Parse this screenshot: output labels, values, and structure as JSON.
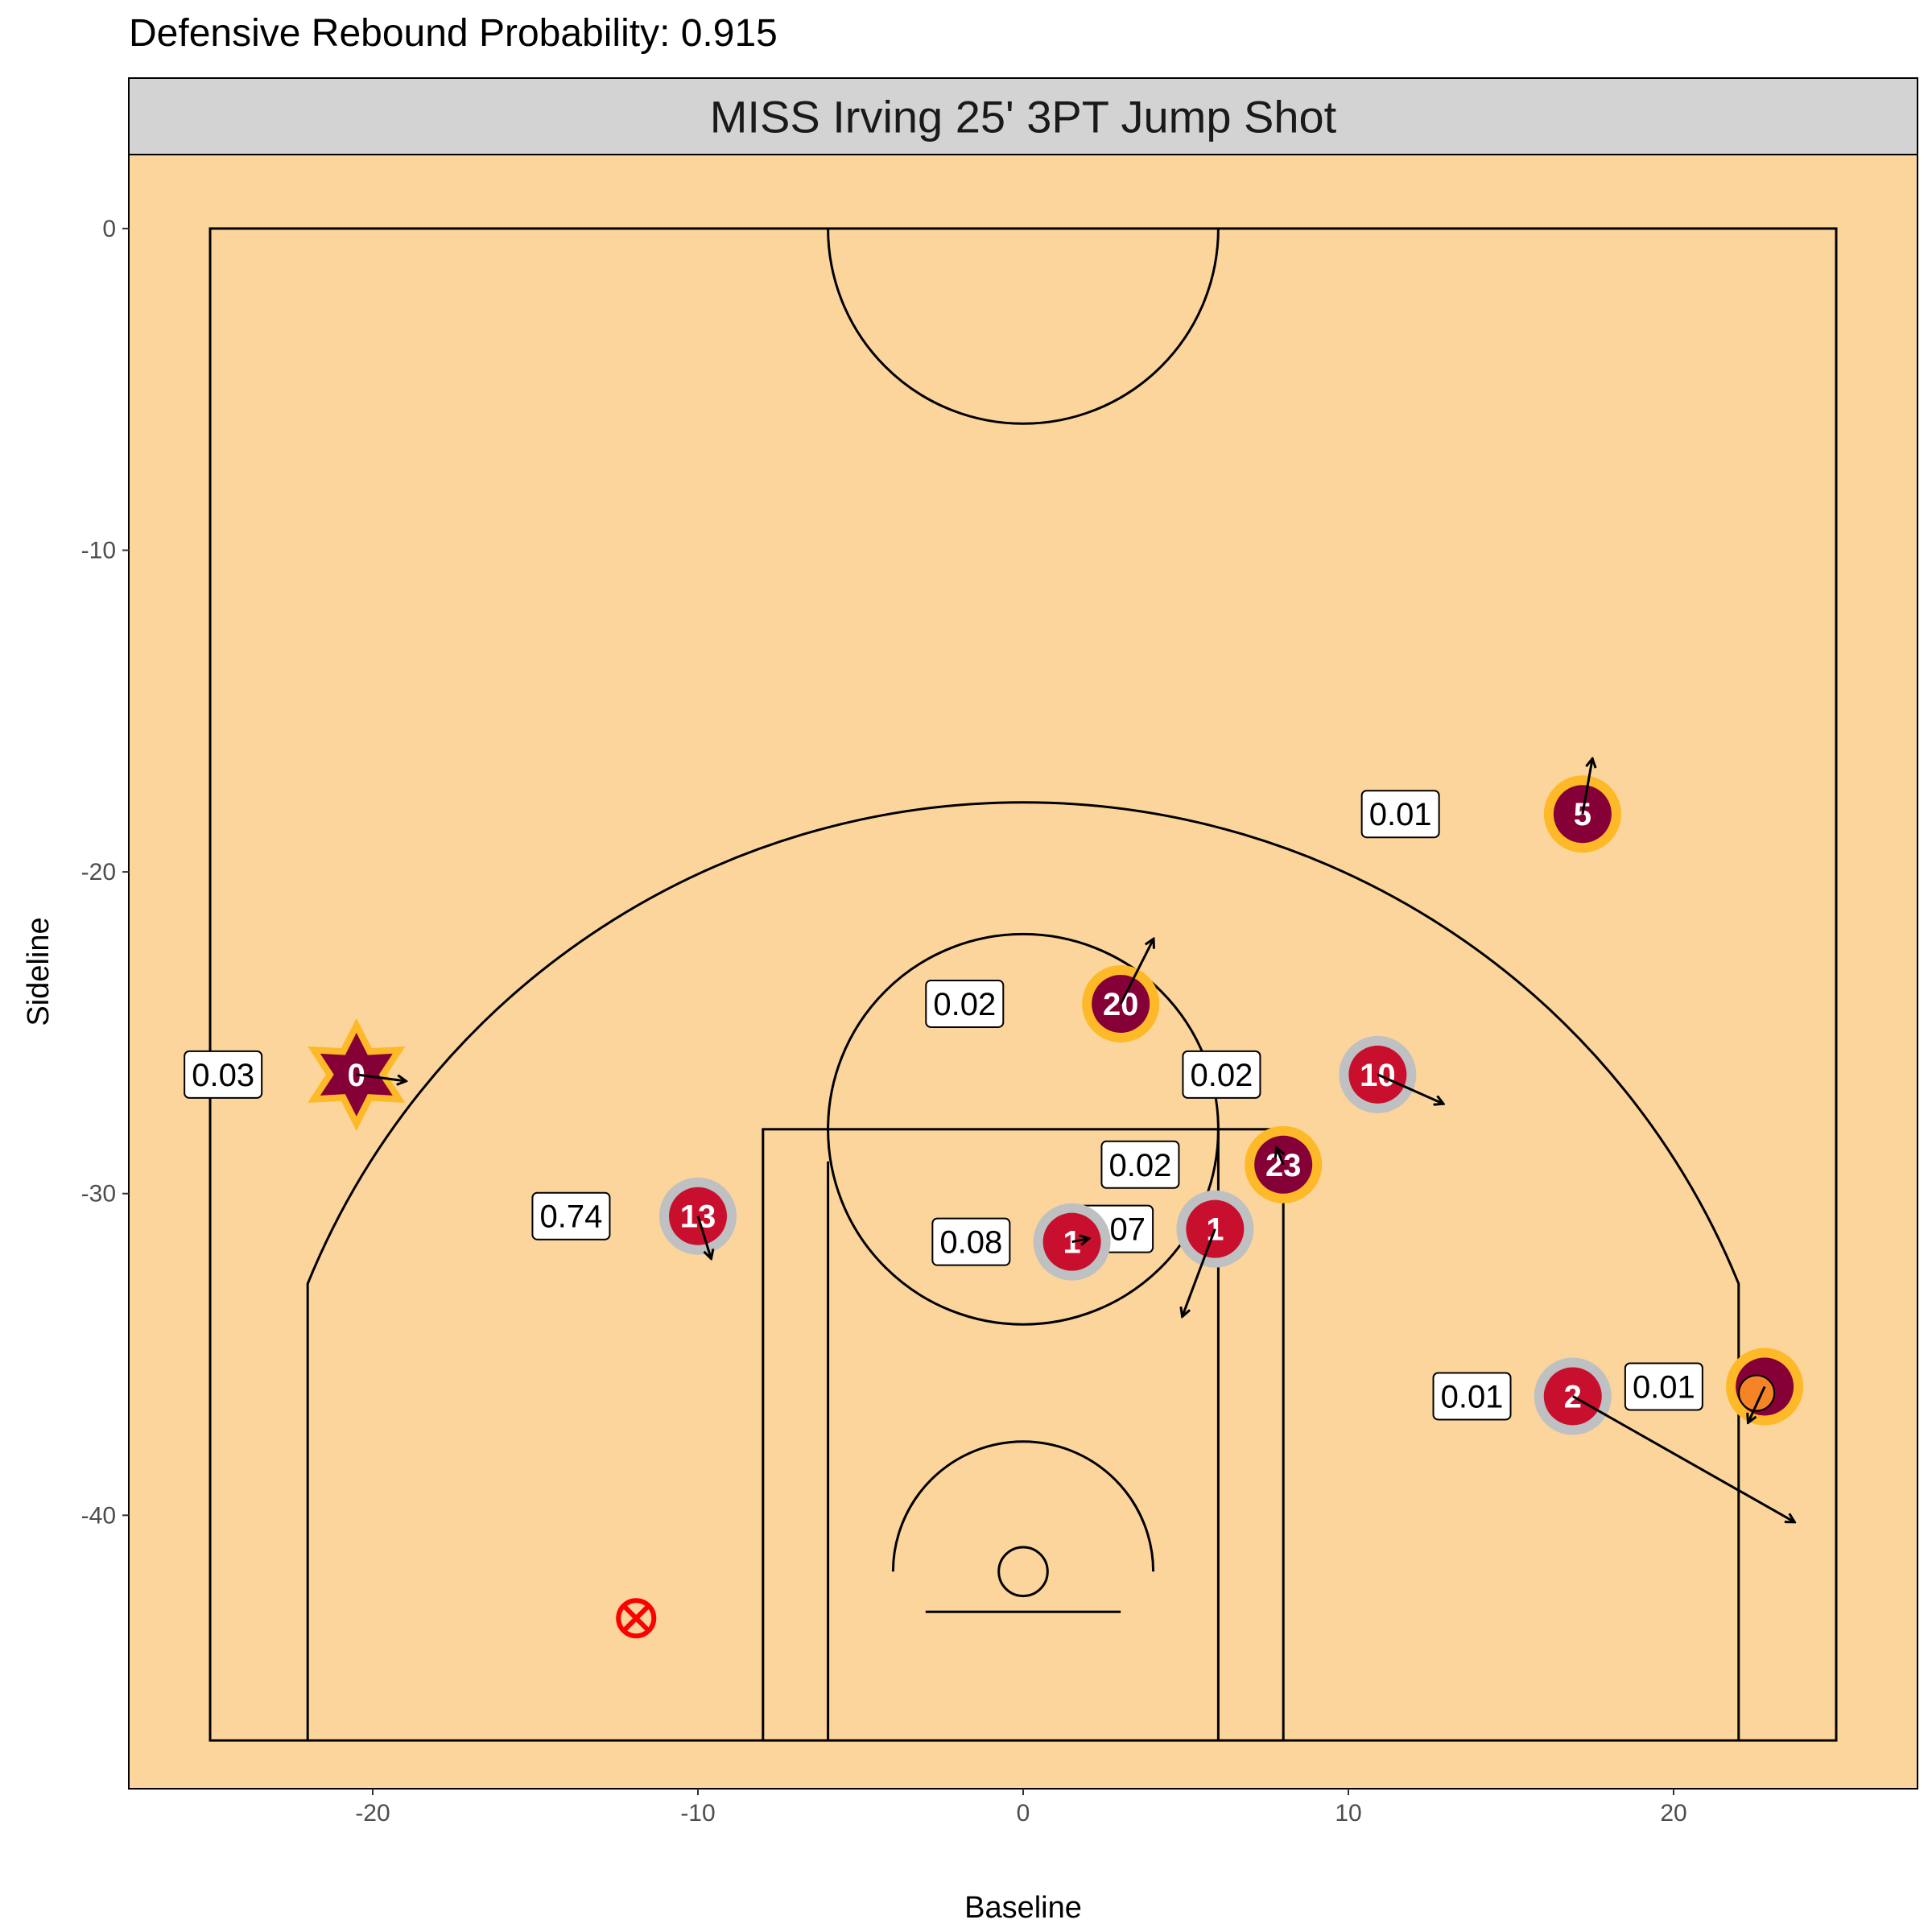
{
  "title": "Defensive Rebound Probability: 0.915",
  "chart_data": {
    "type": "scatter",
    "panel_title": "MISS Irving 25' 3PT Jump Shot",
    "xlabel": "Baseline",
    "ylabel": "Sideline",
    "xlim": [
      -27.5,
      27.5
    ],
    "ylim": [
      -48.5,
      2.3
    ],
    "x_ticks": [
      -20,
      -10,
      0,
      10,
      20
    ],
    "y_ticks": [
      0,
      -10,
      -20,
      -30,
      -40
    ],
    "grid": false,
    "colors": {
      "court": "#FCD59C",
      "strip": "#D3D3D3",
      "team_a_fill": "#860038",
      "team_a_ring": "#FDB927",
      "team_b_fill": "#C8102E",
      "team_b_ring": "#BEC0C2",
      "ball": "#F58426",
      "shot_marker": "#FF0000"
    },
    "players": [
      {
        "number": "5",
        "team": "a",
        "x": 17.2,
        "y": -18.2,
        "dx": 0.3,
        "dy": 1.7,
        "prob": "0.01",
        "lx": -5.6,
        "ly": 0.0
      },
      {
        "number": "20",
        "team": "a",
        "x": 3.0,
        "y": -24.1,
        "dx": 1.0,
        "dy": 2.0,
        "prob": "0.02",
        "lx": -4.8,
        "ly": 0.0
      },
      {
        "number": "0",
        "team": "a",
        "x": -20.5,
        "y": -26.3,
        "dx": 1.5,
        "dy": -0.2,
        "prob": "0.03",
        "lx": -4.1,
        "ly": 0.0,
        "star": true
      },
      {
        "number": "10",
        "team": "b",
        "x": 10.9,
        "y": -26.3,
        "dx": 2.0,
        "dy": -0.9,
        "prob": "0.02",
        "lx": -4.8,
        "ly": 0.0
      },
      {
        "number": "23",
        "team": "a",
        "x": 8.0,
        "y": -29.1,
        "dx": -0.2,
        "dy": 0.5,
        "prob": "0.02",
        "lx": -4.4,
        "ly": 0.0
      },
      {
        "number": "13",
        "team": "b",
        "x": -10.0,
        "y": -30.7,
        "dx": 0.4,
        "dy": -1.3,
        "prob": "0.74",
        "lx": -3.9,
        "ly": 0.0
      },
      {
        "number": "1",
        "team": "b",
        "x": 5.9,
        "y": -31.1,
        "dx": -1.0,
        "dy": -2.7,
        "prob": "0.07",
        "lx": -3.1,
        "ly": 0.0
      },
      {
        "number": "1",
        "team": "b",
        "x": 1.5,
        "y": -31.5,
        "dx": 0.5,
        "dy": 0.1,
        "prob": "0.08",
        "lx": -3.1,
        "ly": 0.0
      },
      {
        "number": "2",
        "team": "b",
        "x": 16.9,
        "y": -36.3,
        "dx": 6.8,
        "dy": -3.9,
        "prob": "0.01",
        "lx": -3.1,
        "ly": 0.0
      },
      {
        "number": "",
        "team": "a",
        "x": 22.8,
        "y": -36.0,
        "dx": -0.5,
        "dy": -1.1,
        "prob": "0.01",
        "lx": -3.1,
        "ly": 0.0,
        "ball": true
      }
    ],
    "shot_location": {
      "x": -11.9,
      "y": -43.2
    }
  }
}
